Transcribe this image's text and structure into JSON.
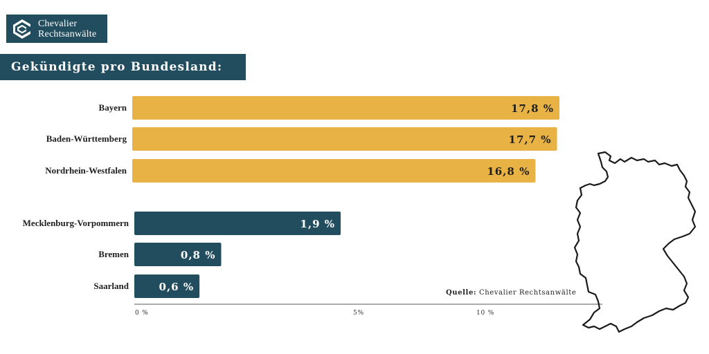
{
  "logo": {
    "line1": "Chevalier",
    "line2": "Rechtsanwälte"
  },
  "title": "Gekündigte pro Bundesland:",
  "source": {
    "label": "Quelle:",
    "text": "Chevalier Rechtsanwälte"
  },
  "colors": {
    "top": "#e8b244",
    "bottom": "#214d5e",
    "banner": "#214d5e"
  },
  "chart_data": {
    "type": "bar",
    "orientation": "horizontal",
    "categories": [
      "Bayern",
      "Baden-Württemberg",
      "Nordrhein-Westfalen",
      "Mecklenburg-Vorpommern",
      "Bremen",
      "Saarland"
    ],
    "values": [
      17.8,
      17.7,
      16.8,
      1.9,
      0.8,
      0.6
    ],
    "value_labels": [
      "17,8 %",
      "17,7 %",
      "16,8 %",
      "1,9 %",
      "0,8 %",
      "0,6 %"
    ],
    "groups": [
      "top",
      "top",
      "top",
      "bottom",
      "bottom",
      "bottom"
    ],
    "x_ticks": [
      "0 %",
      "5%",
      "10 %"
    ],
    "unit": "%"
  }
}
